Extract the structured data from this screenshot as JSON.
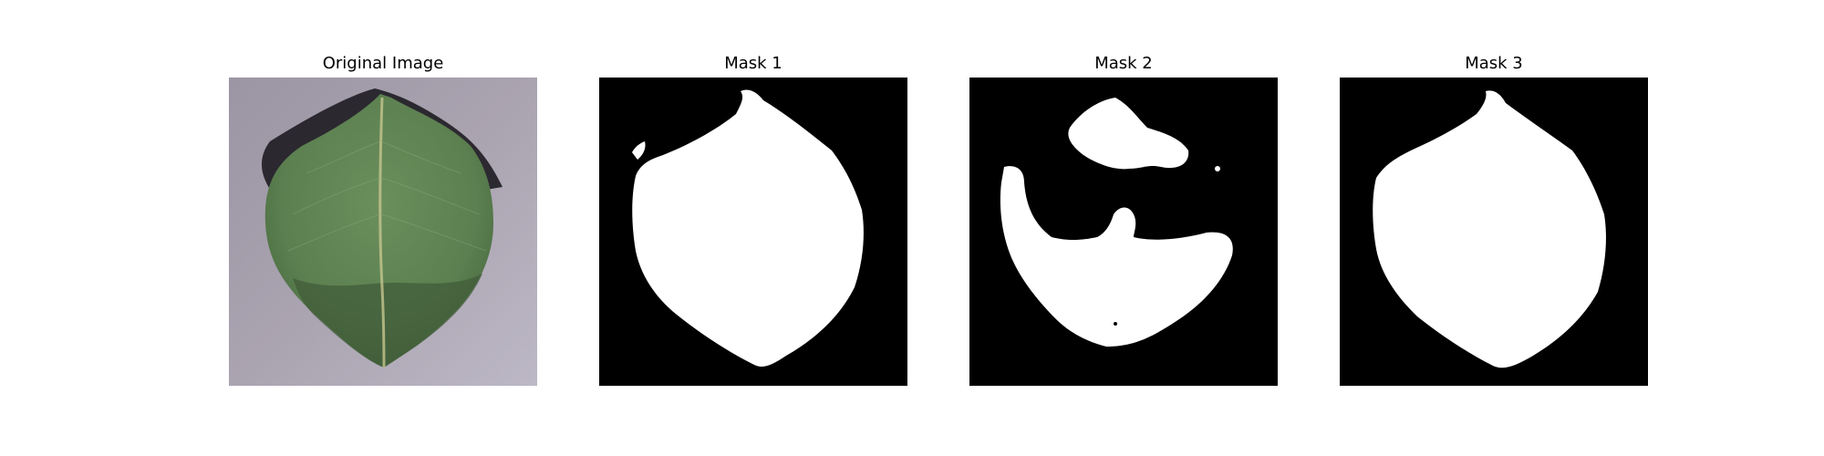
{
  "figure": {
    "panels": [
      {
        "title": "Original Image",
        "kind": "photo",
        "subject": "leaf-photo"
      },
      {
        "title": "Mask 1",
        "kind": "mask"
      },
      {
        "title": "Mask 2",
        "kind": "mask"
      },
      {
        "title": "Mask 3",
        "kind": "mask"
      }
    ]
  },
  "colors": {
    "background_photo": "#aaa3b0",
    "leaf_green": "#5c8050",
    "leaf_dark": "#3f5a37",
    "shadow": "#1e1c22",
    "mask_bg": "#000000",
    "mask_fg": "#ffffff"
  }
}
